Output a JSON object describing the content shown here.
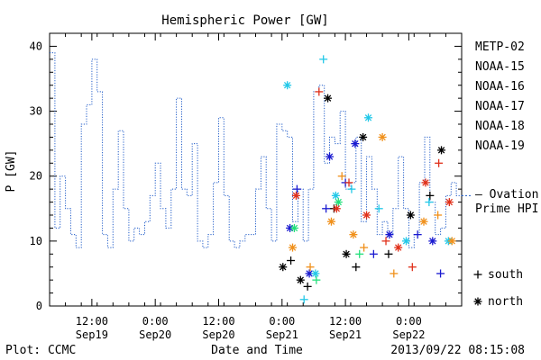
{
  "chart_data": {
    "type": "line",
    "title": "Hemispheric Power [GW]",
    "ylabel": "P [GW]",
    "xlabel": "Date and Time",
    "ylim": [
      0,
      42
    ],
    "y_ticks": [
      0,
      10,
      20,
      30,
      40
    ],
    "x_range": [
      "2013-09-19T04:00",
      "2013-09-22T10:00"
    ],
    "x_ticks": [
      {
        "time": "2013-09-19T12:00",
        "line1": "12:00",
        "line2": "Sep19"
      },
      {
        "time": "2013-09-20T00:00",
        "line1": "0:00",
        "line2": "Sep20"
      },
      {
        "time": "2013-09-20T12:00",
        "line1": "12:00",
        "line2": "Sep20"
      },
      {
        "time": "2013-09-21T00:00",
        "line1": "0:00",
        "line2": "Sep21"
      },
      {
        "time": "2013-09-21T12:00",
        "line1": "12:00",
        "line2": "Sep21"
      },
      {
        "time": "2013-09-22T00:00",
        "line1": "0:00",
        "line2": "Sep22"
      }
    ],
    "grid": false,
    "legend_position": "right",
    "legend": [
      {
        "name": "METP-02",
        "color": "#000000"
      },
      {
        "name": "NOAA-15",
        "color": "#1a1ad0"
      },
      {
        "name": "NOAA-16",
        "color": "#22c8e8"
      },
      {
        "name": "NOAA-17",
        "color": "#22e07a"
      },
      {
        "name": "NOAA-18",
        "color": "#f0901a"
      },
      {
        "name": "NOAA-19",
        "color": "#e0301a"
      }
    ],
    "symbol_key": [
      {
        "symbol": "+",
        "label": "south"
      },
      {
        "symbol": "*",
        "label": "north"
      }
    ],
    "ovation": {
      "label_line1": "— Ovation",
      "label_line2": "Prime HPI",
      "color": "#1f5bc8",
      "last_value": 17,
      "x": [
        "2013-09-19T04:00",
        "2013-09-19T05:00",
        "2013-09-19T06:00",
        "2013-09-19T07:00",
        "2013-09-19T08:00",
        "2013-09-19T09:00",
        "2013-09-19T10:00",
        "2013-09-19T11:00",
        "2013-09-19T12:00",
        "2013-09-19T13:00",
        "2013-09-19T14:00",
        "2013-09-19T15:00",
        "2013-09-19T16:00",
        "2013-09-19T17:00",
        "2013-09-19T18:00",
        "2013-09-19T19:00",
        "2013-09-19T20:00",
        "2013-09-19T21:00",
        "2013-09-19T22:00",
        "2013-09-19T23:00",
        "2013-09-20T00:00",
        "2013-09-20T01:00",
        "2013-09-20T02:00",
        "2013-09-20T03:00",
        "2013-09-20T04:00",
        "2013-09-20T05:00",
        "2013-09-20T06:00",
        "2013-09-20T07:00",
        "2013-09-20T08:00",
        "2013-09-20T09:00",
        "2013-09-20T10:00",
        "2013-09-20T11:00",
        "2013-09-20T12:00",
        "2013-09-20T13:00",
        "2013-09-20T14:00",
        "2013-09-20T15:00",
        "2013-09-20T16:00",
        "2013-09-20T17:00",
        "2013-09-20T18:00",
        "2013-09-20T19:00",
        "2013-09-20T20:00",
        "2013-09-20T21:00",
        "2013-09-20T22:00",
        "2013-09-20T23:00",
        "2013-09-21T00:00",
        "2013-09-21T01:00",
        "2013-09-21T02:00",
        "2013-09-21T03:00",
        "2013-09-21T04:00",
        "2013-09-21T05:00",
        "2013-09-21T06:00",
        "2013-09-21T07:00",
        "2013-09-21T08:00",
        "2013-09-21T09:00",
        "2013-09-21T10:00",
        "2013-09-21T11:00",
        "2013-09-21T12:00",
        "2013-09-21T13:00",
        "2013-09-21T14:00",
        "2013-09-21T15:00",
        "2013-09-21T16:00",
        "2013-09-21T17:00",
        "2013-09-21T18:00",
        "2013-09-21T19:00",
        "2013-09-21T20:00",
        "2013-09-21T21:00",
        "2013-09-21T22:00",
        "2013-09-21T23:00",
        "2013-09-22T00:00",
        "2013-09-22T01:00",
        "2013-09-22T02:00",
        "2013-09-22T03:00",
        "2013-09-22T04:00",
        "2013-09-22T05:00",
        "2013-09-22T06:00",
        "2013-09-22T07:00",
        "2013-09-22T08:00",
        "2013-09-22T09:00"
      ],
      "y": [
        39,
        12,
        20,
        15,
        11,
        9,
        28,
        31,
        38,
        33,
        11,
        9,
        18,
        27,
        15,
        10,
        12,
        11,
        13,
        17,
        22,
        15,
        12,
        18,
        32,
        18,
        17,
        25,
        10,
        9,
        11,
        19,
        29,
        17,
        10,
        9,
        10,
        11,
        11,
        18,
        23,
        15,
        10,
        28,
        27,
        26,
        13,
        18,
        10,
        18,
        33,
        34,
        22,
        26,
        25,
        30,
        18,
        19,
        26,
        13,
        23,
        18,
        11,
        13,
        11,
        15,
        23,
        15,
        9,
        11,
        19,
        26,
        16,
        11,
        12,
        17,
        19,
        17
      ]
    },
    "series": [
      {
        "name": "METP-02",
        "color": "#000000",
        "x": [
          "2013-09-21T00:10",
          "2013-09-21T01:40",
          "2013-09-21T03:30",
          "2013-09-21T04:50",
          "2013-09-21T08:40",
          "2013-09-21T09:50",
          "2013-09-21T12:10",
          "2013-09-21T14:00",
          "2013-09-21T15:20",
          "2013-09-21T20:10",
          "2013-09-22T00:20",
          "2013-09-22T04:00",
          "2013-09-22T06:10"
        ],
        "y": [
          6,
          7,
          4,
          3,
          32,
          15,
          8,
          6,
          26,
          8,
          14,
          17,
          24
        ]
      },
      {
        "name": "NOAA-15",
        "color": "#1a1ad0",
        "x": [
          "2013-09-21T01:30",
          "2013-09-21T02:50",
          "2013-09-21T05:10",
          "2013-09-21T08:20",
          "2013-09-21T09:00",
          "2013-09-21T12:00",
          "2013-09-21T13:50",
          "2013-09-21T17:20",
          "2013-09-21T20:20",
          "2013-09-22T01:40",
          "2013-09-22T04:30",
          "2013-09-22T06:00"
        ],
        "y": [
          12,
          18,
          5,
          15,
          23,
          19,
          25,
          8,
          11,
          11,
          10,
          5
        ]
      },
      {
        "name": "NOAA-16",
        "color": "#22c8e8",
        "x": [
          "2013-09-21T01:00",
          "2013-09-21T04:10",
          "2013-09-21T06:20",
          "2013-09-21T07:50",
          "2013-09-21T10:10",
          "2013-09-21T13:10",
          "2013-09-21T16:20",
          "2013-09-21T18:20",
          "2013-09-21T23:30",
          "2013-09-22T03:50",
          "2013-09-22T07:30"
        ],
        "y": [
          34,
          1,
          5,
          38,
          17,
          18,
          29,
          15,
          10,
          16,
          10
        ]
      },
      {
        "name": "NOAA-17",
        "color": "#22e07a",
        "x": [
          "2013-09-21T02:20",
          "2013-09-21T06:30",
          "2013-09-21T10:40",
          "2013-09-21T14:40"
        ],
        "y": [
          12,
          4,
          16,
          8
        ]
      },
      {
        "name": "NOAA-18",
        "color": "#f0901a",
        "x": [
          "2013-09-21T02:00",
          "2013-09-21T05:20",
          "2013-09-21T09:20",
          "2013-09-21T11:20",
          "2013-09-21T13:30",
          "2013-09-21T15:30",
          "2013-09-21T19:00",
          "2013-09-21T21:10",
          "2013-09-22T02:50",
          "2013-09-22T05:30",
          "2013-09-22T08:10"
        ],
        "y": [
          9,
          6,
          13,
          20,
          11,
          9,
          26,
          5,
          13,
          14,
          10
        ]
      },
      {
        "name": "NOAA-19",
        "color": "#e0301a",
        "x": [
          "2013-09-21T02:40",
          "2013-09-21T07:00",
          "2013-09-21T10:20",
          "2013-09-21T12:40",
          "2013-09-21T16:00",
          "2013-09-21T19:40",
          "2013-09-21T22:00",
          "2013-09-22T00:40",
          "2013-09-22T03:10",
          "2013-09-22T05:40",
          "2013-09-22T07:40"
        ],
        "y": [
          17,
          33,
          15,
          19,
          14,
          10,
          9,
          6,
          19,
          22,
          16
        ]
      }
    ]
  },
  "footer": {
    "left": "Plot: CCMC",
    "right": "2013/09/22 08:15:08"
  }
}
